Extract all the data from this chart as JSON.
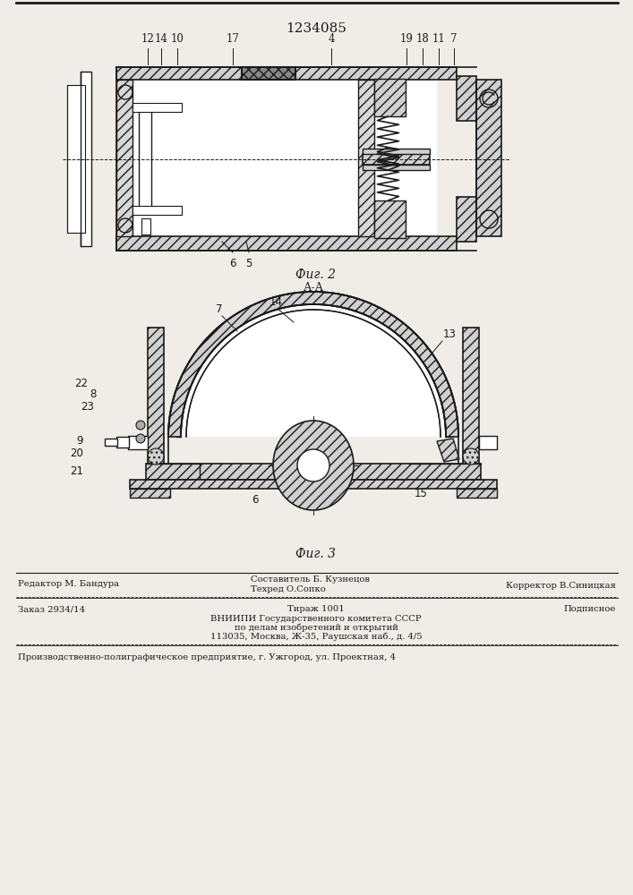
{
  "patent_number": "1234085",
  "fig2_label": "Фиг. 2",
  "fig3_label": "Фиг. 3",
  "fig3_section": "А-А",
  "footer": {
    "editor": "Редактор М. Бандура",
    "compiler_title": "Составитель Б. Кузнецов",
    "techred": "Техред О.Сопко",
    "corrector": "Корректор В.Синицкая",
    "order": "Заказ 2934/14",
    "circulation": "Тираж 1001",
    "subscription": "Подписное",
    "org1": "ВНИИПИ Государственного комитета СССР",
    "org2": "по делам изобретений и открытий",
    "org3": "113035, Москва, Ж-35, Раушская наб., д. 4/5",
    "printer": "Производственно-полиграфическое предприятие, г. Ужгород, ул. Проектная, 4"
  },
  "bg_color": "#f0ede8",
  "line_color": "#1a1a1a"
}
